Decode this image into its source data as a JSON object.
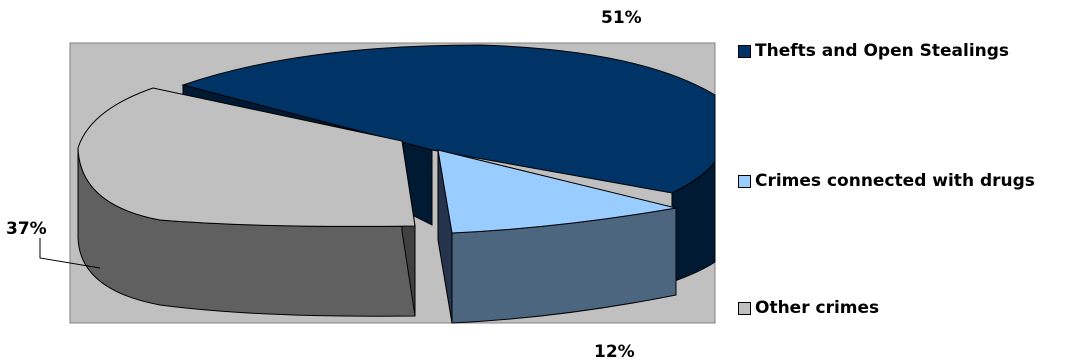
{
  "chart_data": {
    "type": "pie",
    "style": "3d-exploded",
    "title": "",
    "legend_position": "right",
    "slices": [
      {
        "label": "Thefts and Open Stealings",
        "value": 51,
        "display": "51%",
        "color": "#003366",
        "side_color": "#001a33"
      },
      {
        "label": "Crimes connected with drugs",
        "value": 12,
        "display": "12%",
        "color": "#99ccff",
        "side_color": "#4d6680"
      },
      {
        "label": "Other crimes",
        "value": 37,
        "display": "37%",
        "color": "#c0c0c0",
        "side_color": "#606060"
      }
    ],
    "plot_background": "#c0c0c0"
  }
}
